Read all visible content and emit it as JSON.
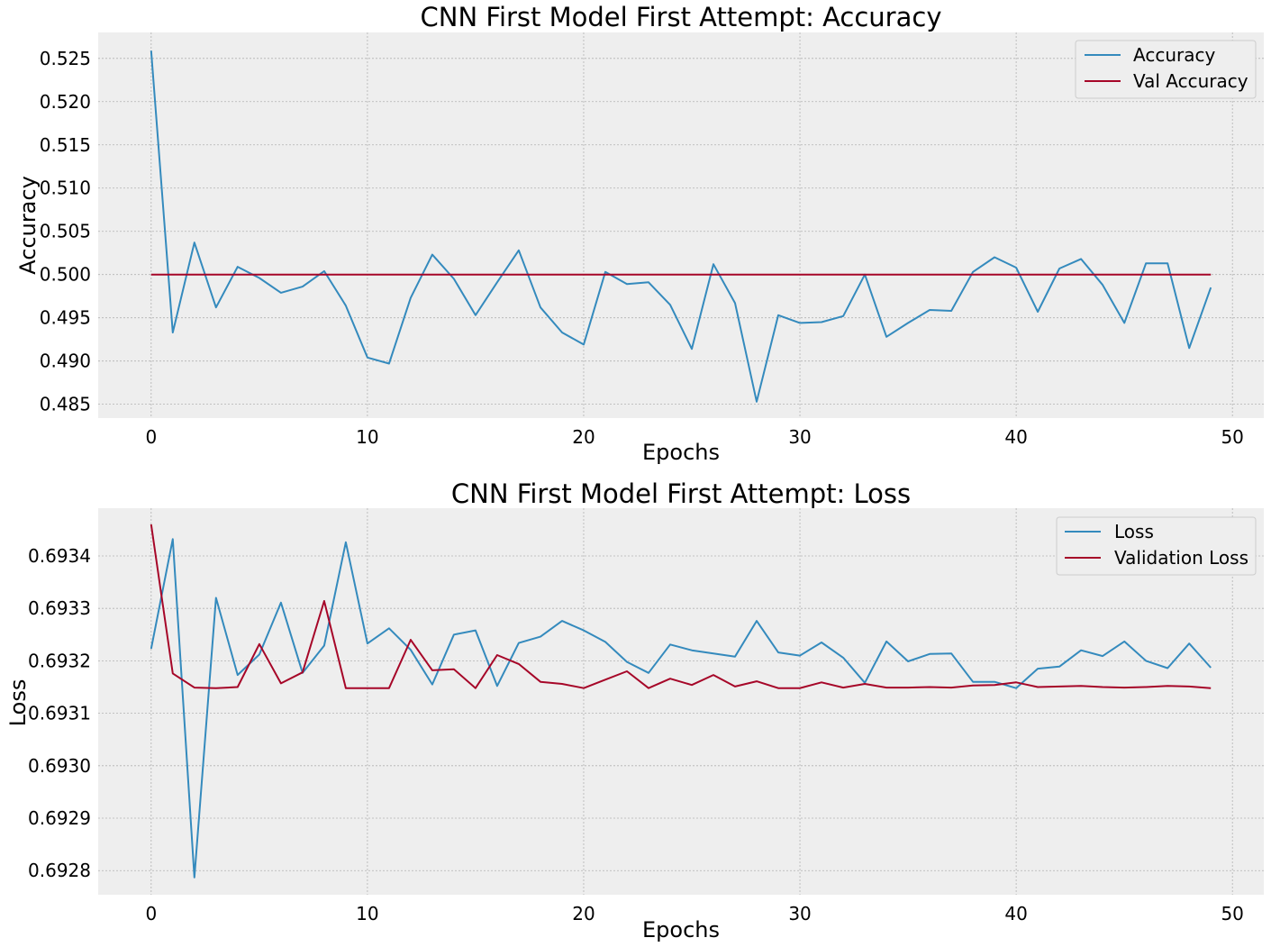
{
  "chart_data": [
    {
      "type": "line",
      "title": "CNN First Model First Attempt: Accuracy",
      "xlabel": "Epochs",
      "ylabel": "Accuracy",
      "xlim": [
        -2.45,
        51.45
      ],
      "ylim": [
        0.4834,
        0.528
      ],
      "xticks": [
        0,
        10,
        20,
        30,
        40,
        50
      ],
      "xtick_labels": [
        "0",
        "10",
        "20",
        "30",
        "40",
        "50"
      ],
      "yticks": [
        0.485,
        0.49,
        0.495,
        0.5,
        0.505,
        0.51,
        0.515,
        0.52,
        0.525
      ],
      "ytick_labels": [
        "0.485",
        "0.490",
        "0.495",
        "0.500",
        "0.505",
        "0.510",
        "0.515",
        "0.520",
        "0.525"
      ],
      "grid": true,
      "legend_position": "top-right",
      "x": [
        0,
        1,
        2,
        3,
        4,
        5,
        6,
        7,
        8,
        9,
        10,
        11,
        12,
        13,
        14,
        15,
        16,
        17,
        18,
        19,
        20,
        21,
        22,
        23,
        24,
        25,
        26,
        27,
        28,
        29,
        30,
        31,
        32,
        33,
        34,
        35,
        36,
        37,
        38,
        39,
        40,
        41,
        42,
        43,
        44,
        45,
        46,
        47,
        48,
        49
      ],
      "series": [
        {
          "name": "Accuracy",
          "color": "#348abd",
          "values": [
            0.5259,
            0.4933,
            0.5037,
            0.4962,
            0.5009,
            0.4996,
            0.4979,
            0.4986,
            0.5004,
            0.4964,
            0.4904,
            0.4897,
            0.4973,
            0.5023,
            0.4995,
            0.4953,
            0.4991,
            0.5028,
            0.4962,
            0.4933,
            0.4919,
            0.5003,
            0.4989,
            0.4991,
            0.4965,
            0.4914,
            0.5012,
            0.4967,
            0.4853,
            0.4953,
            0.4944,
            0.4945,
            0.4952,
            0.5,
            0.4928,
            0.4944,
            0.4959,
            0.4958,
            0.5003,
            0.502,
            0.5008,
            0.4957,
            0.5007,
            0.5018,
            0.4988,
            0.4944,
            0.5013,
            0.5013,
            0.4915,
            0.4985
          ]
        },
        {
          "name": "Val Accuracy",
          "color": "#a60628",
          "values": [
            0.5,
            0.5,
            0.5,
            0.5,
            0.5,
            0.5,
            0.5,
            0.5,
            0.5,
            0.5,
            0.5,
            0.5,
            0.5,
            0.5,
            0.5,
            0.5,
            0.5,
            0.5,
            0.5,
            0.5,
            0.5,
            0.5,
            0.5,
            0.5,
            0.5,
            0.5,
            0.5,
            0.5,
            0.5,
            0.5,
            0.5,
            0.5,
            0.5,
            0.5,
            0.5,
            0.5,
            0.5,
            0.5,
            0.5,
            0.5,
            0.5,
            0.5,
            0.5,
            0.5,
            0.5,
            0.5,
            0.5,
            0.5,
            0.5,
            0.5
          ]
        }
      ]
    },
    {
      "type": "line",
      "title": "CNN First Model First Attempt: Loss",
      "xlabel": "Epochs",
      "ylabel": "Loss",
      "xlim": [
        -2.45,
        51.45
      ],
      "ylim": [
        0.692754,
        0.693491
      ],
      "xticks": [
        0,
        10,
        20,
        30,
        40,
        50
      ],
      "xtick_labels": [
        "0",
        "10",
        "20",
        "30",
        "40",
        "50"
      ],
      "yticks": [
        0.6928,
        0.6929,
        0.693,
        0.6931,
        0.6932,
        0.6933,
        0.6934
      ],
      "ytick_labels": [
        "0.6928",
        "0.6929",
        "0.6930",
        "0.6931",
        "0.6932",
        "0.6933",
        "0.6934"
      ],
      "grid": true,
      "legend_position": "top-right",
      "x": [
        0,
        1,
        2,
        3,
        4,
        5,
        6,
        7,
        8,
        9,
        10,
        11,
        12,
        13,
        14,
        15,
        16,
        17,
        18,
        19,
        20,
        21,
        22,
        23,
        24,
        25,
        26,
        27,
        28,
        29,
        30,
        31,
        32,
        33,
        34,
        35,
        36,
        37,
        38,
        39,
        40,
        41,
        42,
        43,
        44,
        45,
        46,
        47,
        48,
        49
      ],
      "series": [
        {
          "name": "Loss",
          "color": "#348abd",
          "values": [
            0.693223,
            0.693432,
            0.692787,
            0.69332,
            0.693173,
            0.693212,
            0.693311,
            0.693177,
            0.693229,
            0.693426,
            0.693233,
            0.693262,
            0.693221,
            0.693155,
            0.69325,
            0.693258,
            0.693152,
            0.693234,
            0.693246,
            0.693276,
            0.693258,
            0.693236,
            0.693198,
            0.693177,
            0.693231,
            0.69322,
            0.693214,
            0.693208,
            0.693276,
            0.693216,
            0.69321,
            0.693235,
            0.693206,
            0.693158,
            0.693237,
            0.693199,
            0.693213,
            0.693214,
            0.69316,
            0.69316,
            0.693148,
            0.693185,
            0.693189,
            0.69322,
            0.693209,
            0.693237,
            0.6932,
            0.693186,
            0.693233,
            0.693187
          ]
        },
        {
          "name": "Validation Loss",
          "color": "#a60628",
          "values": [
            0.69346,
            0.693176,
            0.693149,
            0.693148,
            0.69315,
            0.693232,
            0.693157,
            0.693178,
            0.693314,
            0.693148,
            0.693148,
            0.693148,
            0.69324,
            0.693182,
            0.693184,
            0.693148,
            0.693211,
            0.693194,
            0.69316,
            0.693156,
            0.693148,
            0.693164,
            0.69318,
            0.693148,
            0.693166,
            0.693154,
            0.693173,
            0.693151,
            0.693161,
            0.693148,
            0.693148,
            0.693159,
            0.693149,
            0.693156,
            0.693149,
            0.693149,
            0.69315,
            0.693149,
            0.693153,
            0.693154,
            0.693159,
            0.69315,
            0.693151,
            0.693152,
            0.69315,
            0.693149,
            0.69315,
            0.693152,
            0.693151,
            0.693148
          ]
        }
      ]
    }
  ]
}
